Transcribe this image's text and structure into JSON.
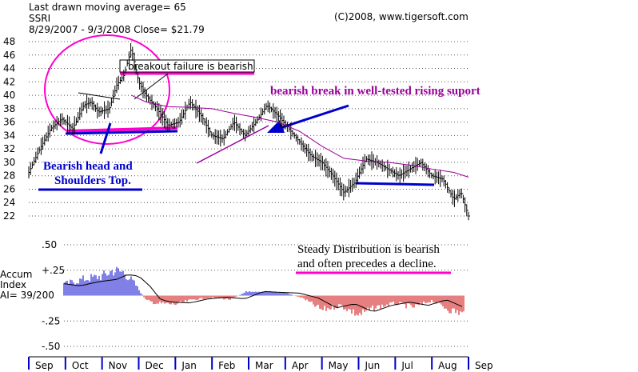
{
  "header": {
    "ma_line": "Last drawn moving average= 65",
    "ticker": "SSRI",
    "period_line": "8/29/2007 - 9/3/2008   Close= $21.79",
    "copyright": "(C)2008, www.tigersoft.com"
  },
  "annotations": {
    "breakout": "breakout failure is bearish",
    "bearish_break": "bearish break in well-tested rising  suport",
    "hs_line1": "Bearish head and",
    "hs_line2": "Shoulders Top.",
    "steady_line1": "Steady Distribution is bearish",
    "steady_line2": "and often precedes a decline.",
    "accum_label_1": "Accum",
    "accum_label_2": "Index",
    "ai_value": "AI= 39/200"
  },
  "colors": {
    "price": "#000000",
    "moving_average": "#990099",
    "positive_accum": "#0000cc",
    "negative_accum": "#cc0000",
    "annotation_blue": "#0000cc",
    "annotation_magenta": "#ff00cc",
    "annotation_purple": "#990099"
  },
  "chart_data": {
    "type": "line",
    "title": "SSRI",
    "y_ticks": [
      48,
      46,
      44,
      42,
      40,
      38,
      36,
      34,
      32,
      30,
      28,
      26,
      24,
      22
    ],
    "ylim": [
      21,
      49
    ],
    "month_labels": [
      "Sep",
      "Oct",
      "Nov",
      "Dec",
      "Jan",
      "Feb",
      "Mar",
      "Apr",
      "May",
      "Jun",
      "Jul",
      "Aug",
      "Sep"
    ],
    "grid": true,
    "series": [
      {
        "kind": "price",
        "x": [
          0,
          0.3,
          0.6,
          0.9,
          1.2,
          1.5,
          1.7,
          1.9,
          2.2,
          2.4,
          2.6,
          2.8,
          3.0,
          3.2,
          3.5,
          3.8,
          4.1,
          4.4,
          4.7,
          5.0,
          5.3,
          5.6,
          5.9,
          6.2,
          6.5,
          6.8,
          7.1,
          7.4,
          7.7,
          8.0,
          8.3,
          8.6,
          8.9,
          9.2,
          9.5,
          9.8,
          10.1,
          10.4,
          10.7,
          11.0,
          11.3,
          11.6,
          11.8,
          12.0
        ],
        "values": [
          28.5,
          32,
          35,
          36.5,
          35,
          38.5,
          39,
          37.5,
          38,
          41.5,
          43,
          47,
          42,
          40,
          38,
          35.5,
          36,
          39,
          37,
          34,
          33.5,
          36,
          34,
          36,
          38.5,
          37,
          35,
          33,
          31,
          30,
          28,
          25.5,
          27,
          30.5,
          30,
          29,
          28,
          29,
          30,
          28,
          27.5,
          24.5,
          25.5,
          22
        ]
      },
      {
        "kind": "moving_average",
        "name": "65-day MA",
        "x": [
          2.8,
          3.2,
          3.8,
          4.4,
          5.0,
          5.6,
          6.2,
          6.8,
          7.4,
          8.0,
          8.6,
          9.2,
          9.8,
          10.4,
          11.0,
          11.6,
          12.0
        ],
        "values": [
          40,
          39,
          38.3,
          38.2,
          38,
          37.3,
          36.7,
          36,
          34.6,
          32.4,
          30.6,
          30.2,
          30,
          29.6,
          29,
          28.5,
          27.8
        ]
      }
    ],
    "accumulation_index": {
      "y_ticks": [
        ".50",
        "+.25",
        "-.25",
        "-.50"
      ],
      "ylim": [
        -0.5,
        0.5
      ],
      "x": [
        0,
        0.5,
        1.0,
        1.5,
        2.0,
        2.3,
        2.6,
        2.9,
        3.2,
        3.5,
        4.0,
        4.5,
        5.0,
        5.5,
        6.0,
        6.5,
        7.0,
        7.5,
        8.0,
        8.5,
        9.0,
        9.5,
        10.0,
        10.5,
        11.0,
        11.5,
        12.0
      ],
      "values": [
        0.18,
        0.15,
        0.12,
        0.17,
        0.2,
        0.26,
        0.24,
        0.12,
        -0.05,
        -0.08,
        -0.09,
        -0.04,
        -0.02,
        -0.04,
        0.05,
        0.04,
        0.03,
        -0.03,
        -0.15,
        -0.1,
        -0.2,
        -0.12,
        -0.08,
        -0.12,
        -0.05,
        -0.15,
        -0.2
      ]
    }
  }
}
